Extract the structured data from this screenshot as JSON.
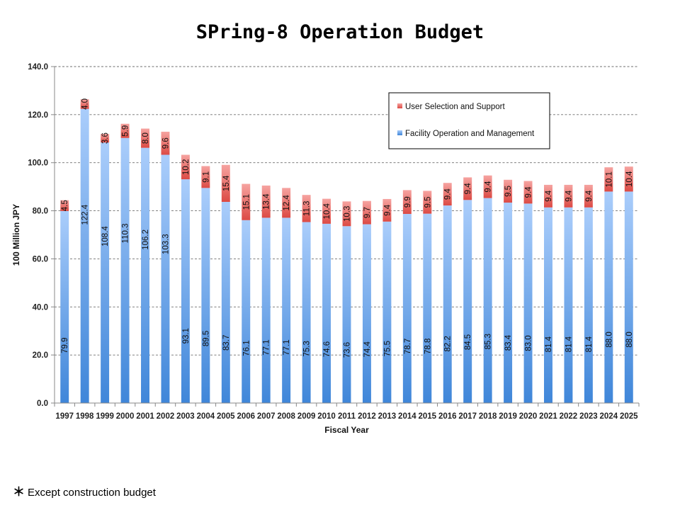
{
  "chart_data": {
    "type": "bar",
    "stacked": true,
    "title": "SPring-8 Operation Budget",
    "xlabel": "Fiscal Year",
    "ylabel": "100 Million JPY",
    "ylim": [
      0,
      140
    ],
    "yticks": [
      "0.0",
      "20.0",
      "40.0",
      "60.0",
      "80.0",
      "100.0",
      "120.0",
      "140.0"
    ],
    "grid": true,
    "legend_position": "top-right",
    "categories": [
      "1997",
      "1998",
      "1999",
      "2000",
      "2001",
      "2002",
      "2003",
      "2004",
      "2005",
      "2006",
      "2007",
      "2008",
      "2009",
      "2010",
      "2011",
      "2012",
      "2013",
      "2014",
      "2015",
      "2016",
      "2017",
      "2018",
      "2019",
      "2020",
      "2021",
      "2022",
      "2023",
      "2024",
      "2025"
    ],
    "series": [
      {
        "name": "Facility Operation and Management",
        "color_top": "#aacdfb",
        "color_bottom": "#3f86d9",
        "values": [
          79.9,
          122.4,
          108.4,
          110.3,
          106.2,
          103.3,
          93.1,
          89.5,
          83.7,
          76.1,
          77.1,
          77.1,
          75.3,
          74.6,
          73.6,
          74.4,
          75.5,
          78.7,
          78.8,
          82.2,
          84.5,
          85.3,
          83.4,
          83.0,
          81.4,
          81.4,
          81.4,
          88.0,
          88.0
        ],
        "labels": [
          "79.9",
          "122.4",
          "108.4",
          "110.3",
          "106.2",
          "103.3",
          "93.1",
          "89.5",
          "83.7",
          "76.1",
          "77.1",
          "77.1",
          "75.3",
          "74.6",
          "73.6",
          "74.4",
          "75.5",
          "78.7",
          "78.8",
          "82.2",
          "84.5",
          "85.3",
          "83.4",
          "83.0",
          "81.4",
          "81.4",
          "81.4",
          "88.0",
          "88.0"
        ]
      },
      {
        "name": "User Selection and Support",
        "color_top": "#f6a3a0",
        "color_bottom": "#dc4a44",
        "values": [
          4.5,
          4.0,
          3.6,
          5.9,
          8.0,
          9.6,
          10.2,
          9.1,
          15.4,
          15.1,
          13.4,
          12.4,
          11.3,
          10.4,
          10.3,
          9.7,
          9.4,
          9.9,
          9.5,
          9.4,
          9.4,
          9.4,
          9.5,
          9.4,
          9.4,
          9.4,
          9.4,
          10.1,
          10.4
        ],
        "labels": [
          "4.5",
          "4.0",
          "3.6",
          "5.9",
          "8.0",
          "9.6",
          "10.2",
          "9.1",
          "15.4",
          "15.1",
          "13.4",
          "12.4",
          "11.3",
          "10.4",
          "10.3",
          "9.7",
          "9.4",
          "9.9",
          "9.5",
          "9.4",
          "9.4",
          "9.4",
          "9.5",
          "9.4",
          "9.4",
          "9.4",
          "9.4",
          "10.1",
          "10.4"
        ]
      }
    ]
  },
  "footnote": {
    "marker": "＊",
    "text": "Except construction budget"
  }
}
